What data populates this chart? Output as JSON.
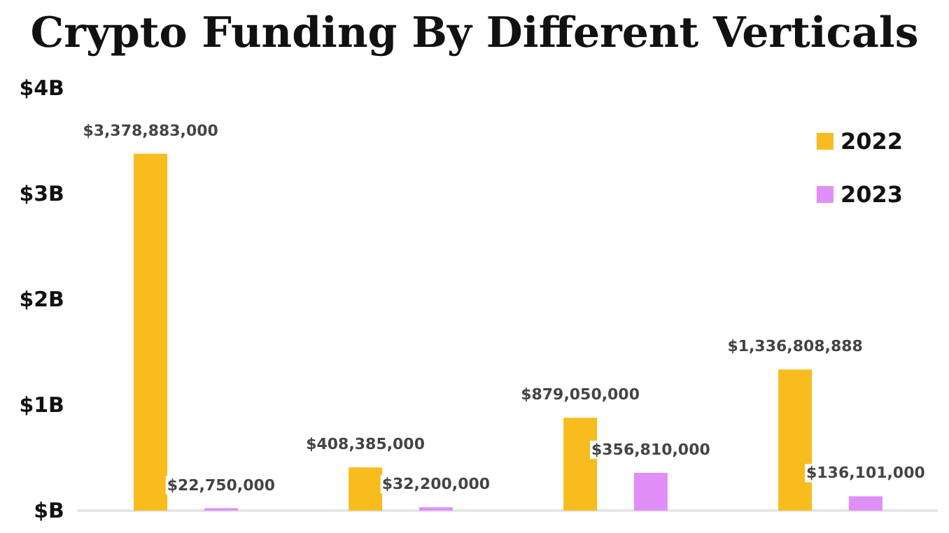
{
  "chart_data": {
    "type": "bar",
    "title": "Crypto Funding By Different Verticals",
    "categories": [
      null,
      null,
      null,
      null
    ],
    "series": [
      {
        "name": "2022",
        "color": "#f8bc1e",
        "values": [
          3378883000,
          408385000,
          879050000,
          1336808888
        ],
        "value_labels": [
          "$3,378,883,000",
          "$408,385,000",
          "$879,050,000",
          "$1,336,808,888"
        ]
      },
      {
        "name": "2023",
        "color": "#e08ef8",
        "values": [
          22750000,
          32200000,
          356810000,
          136101000
        ],
        "value_labels": [
          "$22,750,000",
          "$32,200,000",
          "$356,810,000",
          "$136,101,000"
        ]
      }
    ],
    "ylim": [
      0,
      4000000000
    ],
    "yticks": [
      {
        "value": 0,
        "label": "$B"
      },
      {
        "value": 1000000000,
        "label": "$1B"
      },
      {
        "value": 2000000000,
        "label": "$2B"
      },
      {
        "value": 3000000000,
        "label": "$3B"
      },
      {
        "value": 4000000000,
        "label": "$4B"
      }
    ],
    "grid": false,
    "legend": "top right"
  }
}
